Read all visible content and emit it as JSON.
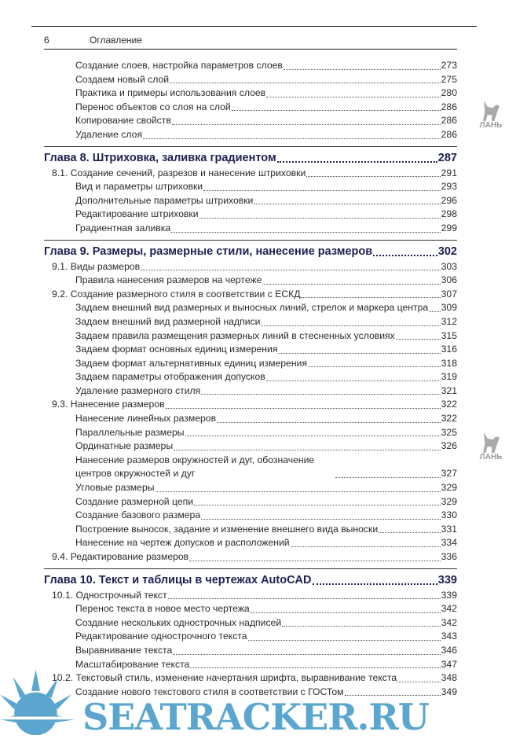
{
  "header": {
    "page_number": "6",
    "title": "Оглавление"
  },
  "toc": [
    {
      "level": 2,
      "title": "Создание слоев, настройка параметров слоев",
      "page": "273"
    },
    {
      "level": 2,
      "title": "Создаем новый слой",
      "page": "275"
    },
    {
      "level": 2,
      "title": "Практика и примеры использования слоев",
      "page": "280"
    },
    {
      "level": 2,
      "title": "Перенос объектов со слоя на слой",
      "page": "286"
    },
    {
      "level": 2,
      "title": "Копирование свойств",
      "page": "286"
    },
    {
      "level": 2,
      "title": "Удаление слоя",
      "page": "286"
    },
    {
      "level": 0,
      "title": "Глава 8. Штриховка, заливка градиентом",
      "page": "287"
    },
    {
      "level": 1,
      "title": "8.1. Создание сечений, разрезов и нанесение штриховки",
      "page": "291"
    },
    {
      "level": 2,
      "title": "Вид и параметры штриховки",
      "page": "293"
    },
    {
      "level": 2,
      "title": "Дополнительные параметры штриховки",
      "page": "296"
    },
    {
      "level": 2,
      "title": "Редактирование штриховки",
      "page": "298"
    },
    {
      "level": 2,
      "title": "Градиентная заливка",
      "page": "299"
    },
    {
      "level": 0,
      "title": "Глава 9. Размеры, размерные стили, нанесение размеров",
      "page": "302"
    },
    {
      "level": 1,
      "title": "9.1. Виды размеров",
      "page": "303"
    },
    {
      "level": 2,
      "title": "Правила нанесения размеров на чертеже",
      "page": "306"
    },
    {
      "level": 1,
      "title": "9.2. Создание размерного стиля в соответствии с ЕСКД",
      "page": "307"
    },
    {
      "level": 2,
      "title": "Задаем внешний вид размерных и выносных линий, стрелок и маркера центра",
      "page": "309"
    },
    {
      "level": 2,
      "title": "Задаем внешний вид размерной надписи",
      "page": "312"
    },
    {
      "level": 2,
      "title": "Задаем правила размещения размерных линий в стесненных условиях",
      "page": "315"
    },
    {
      "level": 2,
      "title": "Задаем формат основных единиц измерения",
      "page": "316"
    },
    {
      "level": 2,
      "title": "Задаем формат альтернативных единиц измерения",
      "page": "318"
    },
    {
      "level": 2,
      "title": "Задаем параметры отображения допусков",
      "page": "319"
    },
    {
      "level": 2,
      "title": "Удаление размерного стиля",
      "page": "321"
    },
    {
      "level": 1,
      "title": "9.3. Нанесение размеров",
      "page": "322"
    },
    {
      "level": 2,
      "title": "Нанесение линейных размеров",
      "page": "322"
    },
    {
      "level": 2,
      "title": "Параллельные размеры",
      "page": "325"
    },
    {
      "level": 2,
      "title": "Ординатные размеры",
      "page": "326"
    },
    {
      "level": 2,
      "title": "Нанесение размеров окружностей и дуг, обозначение центров окружностей и дуг",
      "page": "327",
      "wrap": true
    },
    {
      "level": 2,
      "title": "Угловые размеры",
      "page": "329"
    },
    {
      "level": 2,
      "title": "Создание размерной цепи",
      "page": "329"
    },
    {
      "level": 2,
      "title": "Создание базового размера",
      "page": "330"
    },
    {
      "level": 2,
      "title": "Построение выносок, задание и изменение внешнего вида выноски",
      "page": "331"
    },
    {
      "level": 2,
      "title": "Нанесение на чертеж допусков и расположений",
      "page": "334"
    },
    {
      "level": 1,
      "title": "9.4. Редактирование размеров",
      "page": "336"
    },
    {
      "level": 0,
      "title": "Глава 10. Текст и таблицы в чертежах AutoCAD",
      "page": "339"
    },
    {
      "level": 1,
      "title": "10.1. Однострочный текст",
      "page": "339"
    },
    {
      "level": 2,
      "title": "Перенос текста в новое место чертежа",
      "page": "342"
    },
    {
      "level": 2,
      "title": "Создание нескольких однострочных надписей",
      "page": "342"
    },
    {
      "level": 2,
      "title": "Редактирование однострочного текста",
      "page": "343"
    },
    {
      "level": 2,
      "title": "Выравнивание текста",
      "page": "346"
    },
    {
      "level": 2,
      "title": "Масштабирование текста",
      "page": "347"
    },
    {
      "level": 1,
      "title": "10.2. Текстовый стиль, изменение начертания шрифта, выравнивание текста",
      "page": "348"
    },
    {
      "level": 2,
      "title": "Создание нового текстового стиля в соответствии с ГОСТом",
      "page": "349"
    }
  ],
  "watermarks": {
    "publisher_logo": "ЛАНЬ",
    "site_logo": "SEATRACKER.RU"
  },
  "colors": {
    "chapter": "#1e2050",
    "watermark_blue": "#5ba6cf"
  }
}
